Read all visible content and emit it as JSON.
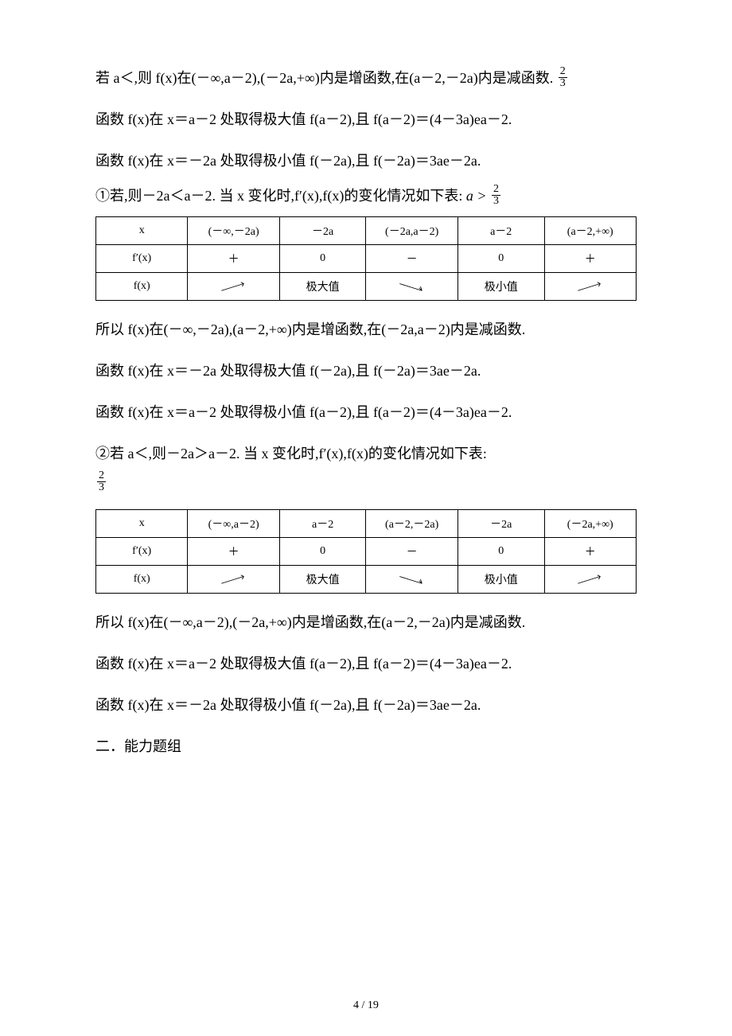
{
  "paragraphs": {
    "p1a": "若 a＜,则 f(x)在(－∞,a－2),(－2a,+∞)内是增函数,在(a－2,－2a)内是减函数.",
    "p1_frac_num": "2",
    "p1_frac_den": "3",
    "p2": "函数 f(x)在 x＝a－2 处取得极大值 f(a－2),且 f(a－2)＝(4－3a)ea－2.",
    "p3": "函数 f(x)在 x＝－2a 处取得极小值 f(－2a),且 f(－2a)＝3ae－2a.",
    "p4_prefix": "①若,则－2a＜a－2. 当 x 变化时,f′(x),f(x)的变化情况如下表:",
    "p4_tail_a": "a >",
    "p4_frac_num": "2",
    "p4_frac_den": "3",
    "p5": "所以 f(x)在(－∞,－2a),(a－2,+∞)内是增函数,在(－2a,a－2)内是减函数.",
    "p6": "函数 f(x)在 x＝－2a 处取得极大值 f(－2a),且 f(－2a)＝3ae－2a.",
    "p7": "函数 f(x)在 x＝a－2 处取得极小值 f(a－2),且 f(a－2)＝(4－3a)ea－2.",
    "p8_prefix": "②若 a＜,则－2a＞a－2. 当 x 变化时,f′(x),f(x)的变化情况如下表:",
    "p8_frac_num": "2",
    "p8_frac_den": "3",
    "p9": "所以 f(x)在(－∞,a－2),(－2a,+∞)内是增函数,在(a－2,－2a)内是减函数.",
    "p10": "函数 f(x)在 x＝a－2 处取得极大值 f(a－2),且 f(a－2)＝(4－3a)ea－2.",
    "p11": "函数 f(x)在 x＝－2a 处取得极小值 f(－2a),且 f(－2a)＝3ae－2a.",
    "p12": "二．能力题组"
  },
  "table1": {
    "col_widths": [
      "17%",
      "17%",
      "16%",
      "17%",
      "16%",
      "17%"
    ],
    "rows": [
      [
        "x",
        "(－∞,－2a)",
        "－2a",
        "(－2a,a－2)",
        "a－2",
        "(a－2,+∞)"
      ],
      [
        "f′(x)",
        "＋",
        "0",
        "－",
        "0",
        "＋"
      ],
      [
        "f(x)",
        "UP",
        "极大值",
        "DOWN",
        "极小值",
        "UP"
      ]
    ]
  },
  "table2": {
    "col_widths": [
      "17%",
      "17%",
      "16%",
      "17%",
      "16%",
      "17%"
    ],
    "rows": [
      [
        "x",
        "(－∞,a－2)",
        "a－2",
        "(a－2,－2a)",
        "－2a",
        "(－2a,+∞)"
      ],
      [
        "f′(x)",
        "＋",
        "0",
        "－",
        "0",
        "＋"
      ],
      [
        "f(x)",
        "UP",
        "极大值",
        "DOWN",
        "极小值",
        "UP"
      ]
    ]
  },
  "page_number": "4 / 19",
  "colors": {
    "text": "#000000",
    "border": "#000000",
    "bg": "#ffffff"
  }
}
